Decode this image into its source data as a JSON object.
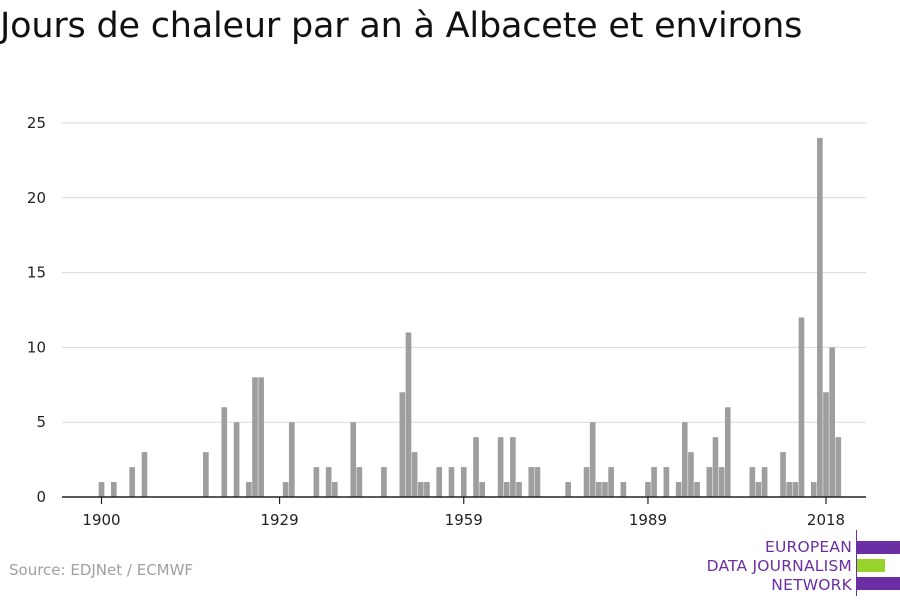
{
  "title": "Jours de chaleur par an à Albacete et environs",
  "source": "Source: EDJNet / ECMWF",
  "logo": {
    "line1": "EUROPEAN",
    "line2": "DATA JOURNALISM",
    "line3": "NETWORK",
    "colors": {
      "purple": "#6b2fa3",
      "green": "#97d32a"
    }
  },
  "colors": {
    "bar": "#9e9e9e",
    "grid": "#d9d9d9",
    "axis": "#222222"
  },
  "chart_data": {
    "type": "bar",
    "title": "Jours de chaleur par an à Albacete et environs",
    "xlabel": "",
    "ylabel": "",
    "x_range": [
      1900,
      2021
    ],
    "ylim": [
      0,
      25
    ],
    "yticks": [
      0,
      5,
      10,
      15,
      20,
      25
    ],
    "xticks": [
      1900,
      1929,
      1959,
      1989,
      2018
    ],
    "grid": true,
    "years": [
      1900,
      1901,
      1902,
      1903,
      1904,
      1905,
      1906,
      1907,
      1908,
      1909,
      1910,
      1911,
      1912,
      1913,
      1914,
      1915,
      1916,
      1917,
      1918,
      1919,
      1920,
      1921,
      1922,
      1923,
      1924,
      1925,
      1926,
      1927,
      1928,
      1929,
      1930,
      1931,
      1932,
      1933,
      1934,
      1935,
      1936,
      1937,
      1938,
      1939,
      1940,
      1941,
      1942,
      1943,
      1944,
      1945,
      1946,
      1947,
      1948,
      1949,
      1950,
      1951,
      1952,
      1953,
      1954,
      1955,
      1956,
      1957,
      1958,
      1959,
      1960,
      1961,
      1962,
      1963,
      1964,
      1965,
      1966,
      1967,
      1968,
      1969,
      1970,
      1971,
      1972,
      1973,
      1974,
      1975,
      1976,
      1977,
      1978,
      1979,
      1980,
      1981,
      1982,
      1983,
      1984,
      1985,
      1986,
      1987,
      1988,
      1989,
      1990,
      1991,
      1992,
      1993,
      1994,
      1995,
      1996,
      1997,
      1998,
      1999,
      2000,
      2001,
      2002,
      2003,
      2004,
      2005,
      2006,
      2007,
      2008,
      2009,
      2010,
      2011,
      2012,
      2013,
      2014,
      2015,
      2016,
      2017,
      2018,
      2019,
      2020
    ],
    "values": [
      1,
      0,
      1,
      0,
      0,
      2,
      0,
      3,
      0,
      0,
      0,
      0,
      0,
      0,
      0,
      0,
      0,
      3,
      0,
      0,
      6,
      0,
      5,
      0,
      1,
      8,
      8,
      0,
      0,
      0,
      1,
      5,
      0,
      0,
      0,
      2,
      0,
      2,
      1,
      0,
      0,
      5,
      2,
      0,
      0,
      0,
      2,
      0,
      0,
      7,
      11,
      3,
      1,
      1,
      0,
      2,
      0,
      2,
      0,
      2,
      0,
      4,
      1,
      0,
      0,
      4,
      1,
      4,
      1,
      0,
      2,
      2,
      0,
      0,
      0,
      0,
      1,
      0,
      0,
      2,
      5,
      1,
      1,
      2,
      0,
      1,
      0,
      0,
      0,
      1,
      2,
      0,
      2,
      0,
      1,
      5,
      3,
      1,
      0,
      2,
      4,
      2,
      6,
      0,
      0,
      0,
      2,
      1,
      2,
      0,
      0,
      3,
      1,
      1,
      12,
      0,
      1,
      24,
      7,
      10,
      4
    ]
  }
}
